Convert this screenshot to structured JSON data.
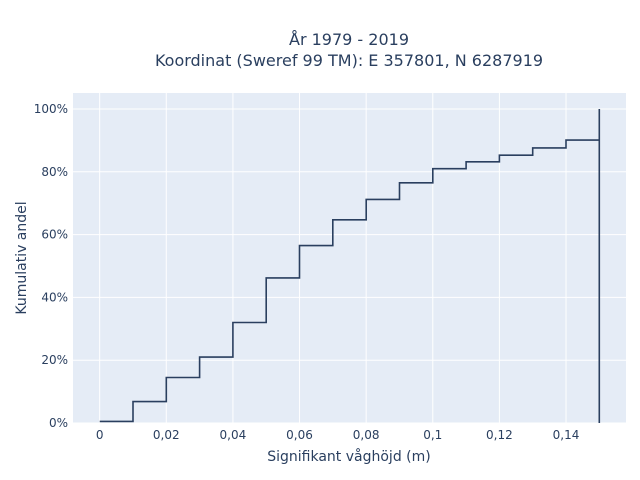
{
  "chart_data": {
    "type": "line",
    "line_shape": "step",
    "title_lines": [
      "År 1979 - 2019",
      "Koordinat (Sweref 99 TM): E 357801, N 6287919"
    ],
    "xlabel": "Signifikant våghöjd (m)",
    "ylabel": "Kumulativ andel",
    "xlim": [
      -0.008,
      0.158
    ],
    "ylim": [
      0,
      1.0
    ],
    "x_ticks": [
      0,
      0.02,
      0.04,
      0.06,
      0.08,
      0.1,
      0.12,
      0.14
    ],
    "x_tick_labels": [
      "0",
      "0,02",
      "0,04",
      "0,06",
      "0,08",
      "0,1",
      "0,12",
      "0,14"
    ],
    "y_ticks": [
      0,
      0.2,
      0.4,
      0.6,
      0.8,
      1.0
    ],
    "y_tick_labels": [
      "0%",
      "20%",
      "40%",
      "60%",
      "80%",
      "100%"
    ],
    "grid": true,
    "line_color": "#2a3f5f",
    "plot_bg": "#e5ecf6",
    "x": [
      0,
      0.01,
      0.02,
      0.03,
      0.04,
      0.05,
      0.06,
      0.07,
      0.08,
      0.09,
      0.1,
      0.11,
      0.12,
      0.13,
      0.14,
      0.15
    ],
    "y": [
      0.005,
      0.068,
      0.145,
      0.21,
      0.32,
      0.462,
      0.565,
      0.647,
      0.712,
      0.765,
      0.81,
      0.832,
      0.853,
      0.876,
      0.901,
      1.0
    ]
  }
}
